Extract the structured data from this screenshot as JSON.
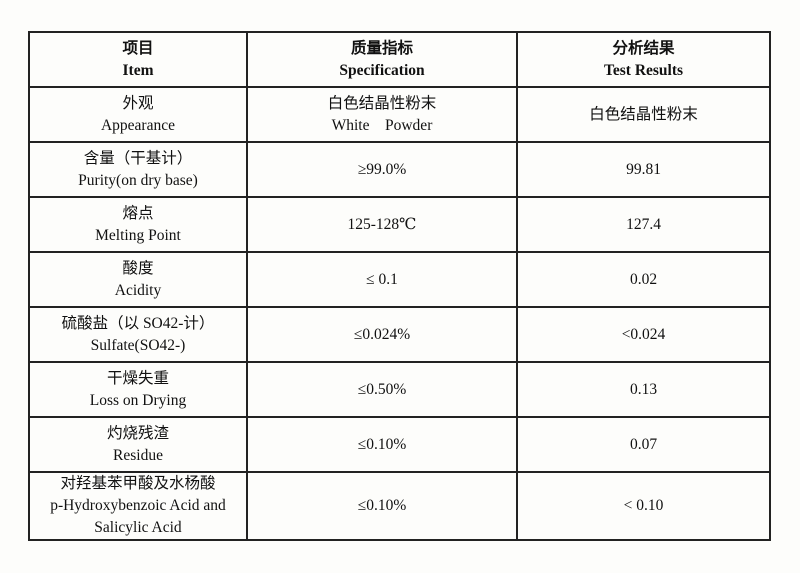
{
  "header": {
    "item": {
      "zh": "项目",
      "en": "Item"
    },
    "spec": {
      "zh": "质量指标",
      "en": "Specification"
    },
    "result": {
      "zh": "分析结果",
      "en": "Test Results"
    }
  },
  "rows": [
    {
      "zh": "外观",
      "en": "Appearance",
      "spec_zh": "白色结晶性粉末",
      "spec": "White    Powder",
      "result": "白色结晶性粉末"
    },
    {
      "zh": "含量（干基计）",
      "en": "Purity(on dry base)",
      "spec": "≥99.0%",
      "result": "99.81"
    },
    {
      "zh": "熔点",
      "en": "Melting Point",
      "spec": "125-128℃",
      "result": "127.4"
    },
    {
      "zh": "酸度",
      "en": "Acidity",
      "spec": "≤ 0.1",
      "result": "0.02"
    },
    {
      "zh": "硫酸盐（以 SO42-计）",
      "en": "Sulfate(SO42-)",
      "spec": "≤0.024%",
      "result": "<0.024"
    },
    {
      "zh": "干燥失重",
      "en": "Loss on Drying",
      "spec": "≤0.50%",
      "result": "0.13"
    },
    {
      "zh": "灼烧残渣",
      "en": "Residue",
      "spec": "≤0.10%",
      "result": "0.07"
    },
    {
      "zh": "对羟基苯甲酸及水杨酸",
      "en": "p-Hydroxybenzoic Acid and",
      "en2": "Salicylic Acid",
      "spec": "≤0.10%",
      "result": "< 0.10"
    }
  ]
}
